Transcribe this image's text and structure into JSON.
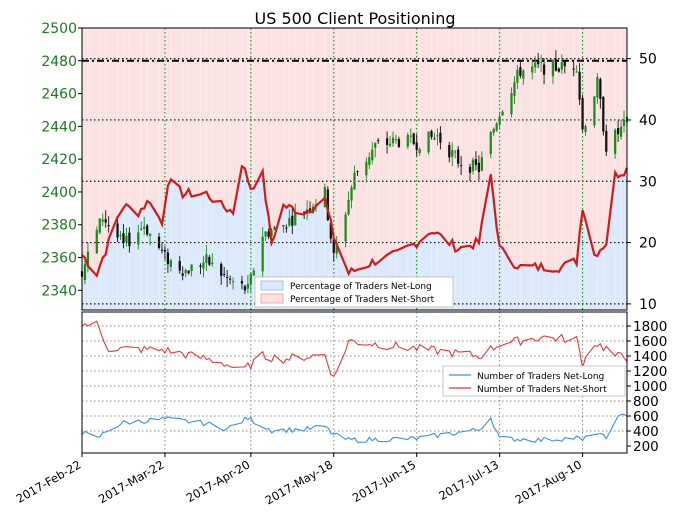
{
  "title": "US 500 Client Positioning",
  "price_ticks": [
    "2340",
    "2360",
    "2380",
    "2400",
    "2420",
    "2440",
    "2460",
    "2480",
    "2500"
  ],
  "pct_ticks": [
    "10",
    "20",
    "30",
    "40",
    "50"
  ],
  "count_ticks": [
    "200",
    "400",
    "600",
    "800",
    "1000",
    "1200",
    "1400",
    "1600",
    "1800"
  ],
  "date_ticks": [
    "2017-Feb-22",
    "2017-Mar-22",
    "2017-Apr-20",
    "2017-May-18",
    "2017-Jun-15",
    "2017-Jul-13",
    "2017-Aug-10"
  ],
  "legend_top": [
    "Percentage of Traders Net-Long",
    "Percentage of Traders Net-Short"
  ],
  "legend_bottom": [
    "Number of Traders Net-Long",
    "Number of Traders Net-Short"
  ],
  "colors": {
    "price_up": "#1e8b1e",
    "price_down": "#111111",
    "pct_line": "#c81e1e",
    "net_long_fill": "#dbe9fb",
    "net_short_fill": "#fbe2e2",
    "count_long": "#3a92dd",
    "count_short": "#e23a3a",
    "axis_label": "#1d7a1d"
  },
  "chart_data": [
    {
      "type": "candlestick",
      "title": "US 500 Client Positioning",
      "y_axis": "left",
      "ylim": [
        2328,
        2500
      ],
      "reference_line": 2480,
      "x_start": "2017-02-22",
      "x_end": "2017-08-25",
      "close_anchors": [
        [
          "2017-02-22",
          2352
        ],
        [
          "2017-03-01",
          2385
        ],
        [
          "2017-03-08",
          2367
        ],
        [
          "2017-03-15",
          2380
        ],
        [
          "2017-03-22",
          2360
        ],
        [
          "2017-03-29",
          2352
        ],
        [
          "2017-04-05",
          2358
        ],
        [
          "2017-04-12",
          2347
        ],
        [
          "2017-04-19",
          2340
        ],
        [
          "2017-04-24",
          2374
        ],
        [
          "2017-05-01",
          2380
        ],
        [
          "2017-05-08",
          2389
        ],
        [
          "2017-05-15",
          2399
        ],
        [
          "2017-05-18",
          2360
        ],
        [
          "2017-05-25",
          2410
        ],
        [
          "2017-06-01",
          2428
        ],
        [
          "2017-06-08",
          2431
        ],
        [
          "2017-06-15",
          2430
        ],
        [
          "2017-06-22",
          2434
        ],
        [
          "2017-06-29",
          2419
        ],
        [
          "2017-07-06",
          2414
        ],
        [
          "2017-07-13",
          2449
        ],
        [
          "2017-07-20",
          2474
        ],
        [
          "2017-07-27",
          2476
        ],
        [
          "2017-08-03",
          2476
        ],
        [
          "2017-08-08",
          2478
        ],
        [
          "2017-08-10",
          2438
        ],
        [
          "2017-08-15",
          2466
        ],
        [
          "2017-08-18",
          2428
        ],
        [
          "2017-08-25",
          2442
        ]
      ]
    },
    {
      "type": "line",
      "name": "Percentage of Traders Net-Short",
      "y_axis": "right",
      "ylim": [
        9,
        55
      ],
      "grid": true,
      "x_start": "2017-02-22",
      "x_end": "2017-08-25",
      "anchors": [
        [
          "2017-02-22",
          18
        ],
        [
          "2017-02-27",
          15
        ],
        [
          "2017-03-03",
          20
        ],
        [
          "2017-03-06",
          24
        ],
        [
          "2017-03-08",
          26
        ],
        [
          "2017-03-13",
          25
        ],
        [
          "2017-03-17",
          27
        ],
        [
          "2017-03-21",
          23
        ],
        [
          "2017-03-23",
          30
        ],
        [
          "2017-03-28",
          28
        ],
        [
          "2017-04-05",
          28
        ],
        [
          "2017-04-10",
          26
        ],
        [
          "2017-04-14",
          25
        ],
        [
          "2017-04-17",
          33
        ],
        [
          "2017-04-20",
          29
        ],
        [
          "2017-04-24",
          31
        ],
        [
          "2017-04-27",
          20
        ],
        [
          "2017-05-01",
          26
        ],
        [
          "2017-05-08",
          25
        ],
        [
          "2017-05-15",
          27
        ],
        [
          "2017-05-18",
          21
        ],
        [
          "2017-05-23",
          15
        ],
        [
          "2017-06-01",
          17
        ],
        [
          "2017-06-08",
          18
        ],
        [
          "2017-06-15",
          20
        ],
        [
          "2017-06-20",
          22
        ],
        [
          "2017-06-29",
          19
        ],
        [
          "2017-07-06",
          20
        ],
        [
          "2017-07-10",
          31
        ],
        [
          "2017-07-13",
          19
        ],
        [
          "2017-07-17",
          17
        ],
        [
          "2017-07-20",
          16
        ],
        [
          "2017-07-27",
          16
        ],
        [
          "2017-08-03",
          16
        ],
        [
          "2017-08-08",
          17
        ],
        [
          "2017-08-10",
          26
        ],
        [
          "2017-08-14",
          18
        ],
        [
          "2017-08-18",
          20
        ],
        [
          "2017-08-21",
          31
        ],
        [
          "2017-08-25",
          32
        ]
      ]
    },
    {
      "type": "line",
      "name": "Number of Traders Net-Short",
      "y_axis": "right",
      "ylim": [
        200,
        1800
      ],
      "grid": true,
      "x_start": "2017-02-22",
      "x_end": "2017-08-25",
      "anchors": [
        [
          "2017-02-22",
          1820
        ],
        [
          "2017-02-27",
          1820
        ],
        [
          "2017-03-03",
          1500
        ],
        [
          "2017-03-22",
          1480
        ],
        [
          "2017-04-10",
          1320
        ],
        [
          "2017-04-17",
          1200
        ],
        [
          "2017-04-24",
          1400
        ],
        [
          "2017-05-01",
          1360
        ],
        [
          "2017-05-15",
          1420
        ],
        [
          "2017-05-18",
          1100
        ],
        [
          "2017-05-23",
          1600
        ],
        [
          "2017-06-15",
          1500
        ],
        [
          "2017-07-06",
          1400
        ],
        [
          "2017-07-13",
          1560
        ],
        [
          "2017-07-27",
          1650
        ],
        [
          "2017-08-08",
          1620
        ],
        [
          "2017-08-10",
          1300
        ],
        [
          "2017-08-14",
          1580
        ],
        [
          "2017-08-18",
          1500
        ],
        [
          "2017-08-21",
          1400
        ],
        [
          "2017-08-25",
          1380
        ]
      ]
    },
    {
      "type": "line",
      "name": "Number of Traders Net-Long",
      "y_axis": "right",
      "ylim": [
        200,
        1800
      ],
      "x_start": "2017-02-22",
      "x_end": "2017-08-25",
      "anchors": [
        [
          "2017-02-22",
          380
        ],
        [
          "2017-02-27",
          300
        ],
        [
          "2017-03-03",
          420
        ],
        [
          "2017-03-08",
          510
        ],
        [
          "2017-03-22",
          560
        ],
        [
          "2017-04-05",
          500
        ],
        [
          "2017-04-12",
          430
        ],
        [
          "2017-04-19",
          570
        ],
        [
          "2017-04-27",
          410
        ],
        [
          "2017-05-08",
          420
        ],
        [
          "2017-05-15",
          460
        ],
        [
          "2017-05-18",
          350
        ],
        [
          "2017-05-23",
          280
        ],
        [
          "2017-06-15",
          300
        ],
        [
          "2017-07-06",
          420
        ],
        [
          "2017-07-10",
          580
        ],
        [
          "2017-07-13",
          300
        ],
        [
          "2017-07-27",
          280
        ],
        [
          "2017-08-08",
          310
        ],
        [
          "2017-08-10",
          270
        ],
        [
          "2017-08-14",
          380
        ],
        [
          "2017-08-18",
          300
        ],
        [
          "2017-08-21",
          560
        ],
        [
          "2017-08-25",
          620
        ]
      ]
    }
  ]
}
